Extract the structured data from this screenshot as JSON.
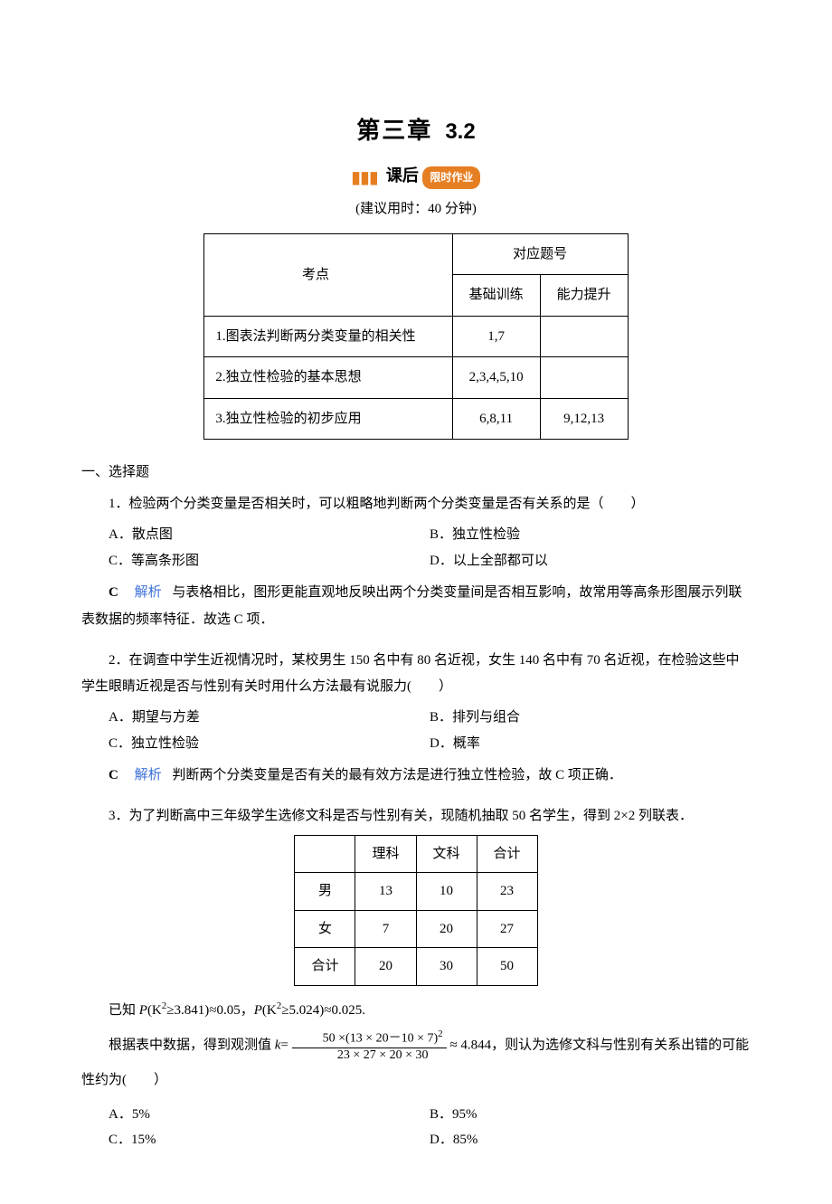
{
  "title": {
    "chapter": "第三章",
    "section": "3.2",
    "subPrefix": "课后",
    "subBadge": "限时作业"
  },
  "advice": "(建议用时：40 分钟)",
  "topicTable": {
    "headers": {
      "topic": "考点",
      "group": "对应题号",
      "basic": "基础训练",
      "improve": "能力提升"
    },
    "rows": [
      {
        "name": "1.图表法判断两分类变量的相关性",
        "basic": "1,7",
        "improve": ""
      },
      {
        "name": "2.独立性检验的基本思想",
        "basic": "2,3,4,5,10",
        "improve": ""
      },
      {
        "name": "3.独立性检验的初步应用",
        "basic": "6,8,11",
        "improve": "9,12,13"
      }
    ]
  },
  "sec1": "一、选择题",
  "q1": {
    "stem": "1．检验两个分类变量是否相关时，可以粗略地判断两个分类变量是否有关系的是（　　）",
    "A": "A．散点图",
    "B": "B．独立性检验",
    "C": "C．等高条形图",
    "D": "D．以上全部都可以",
    "ansLetter": "C",
    "lbl": "解析",
    "ans": "与表格相比，图形更能直观地反映出两个分类变量间是否相互影响，故常用等高条形图展示列联表数据的频率特征．故选 C 项．"
  },
  "q2": {
    "stem": "2．在调查中学生近视情况时，某校男生 150 名中有 80 名近视，女生 140 名中有 70 名近视，在检验这些中学生眼睛近视是否与性别有关时用什么方法最有说服力(　　）",
    "A": "A．期望与方差",
    "B": "B．排列与组合",
    "C": "C．独立性检验",
    "D": "D．概率",
    "ansLetter": "C",
    "lbl": "解析",
    "ans": "判断两个分类变量是否有关的最有效方法是进行独立性检验，故 C 项正确．"
  },
  "q3": {
    "intro": "3．为了判断高中三年级学生选修文科是否与性别有关，现随机抽取 50 名学生，得到 2×2 列联表．",
    "table": {
      "h": [
        "",
        "理科",
        "文科",
        "合计"
      ],
      "r": [
        [
          "男",
          "13",
          "10",
          "23"
        ],
        [
          "女",
          "7",
          "20",
          "27"
        ],
        [
          "合计",
          "20",
          "30",
          "50"
        ]
      ]
    },
    "known_pre": "已知 ",
    "known_p1a": "P",
    "known_p1b": "(K",
    "known_p1c": "≥3.841)≈0.05，",
    "known_p2a": "P",
    "known_p2b": "(K",
    "known_p2c": "≥5.024)≈0.025.",
    "line2a": "根据表中数据，得到观测值 ",
    "line2b": "≈ 4.844，则认为选修文科与性别有关系出错的可能性约为(　　）",
    "fracN": "50 ×(13 × 20－10 × 7)",
    "fracD": "23 × 27 × 20 × 30",
    "A": "A．5%",
    "B": "B．95%",
    "C": "C．15%",
    "D": "D．85%"
  }
}
